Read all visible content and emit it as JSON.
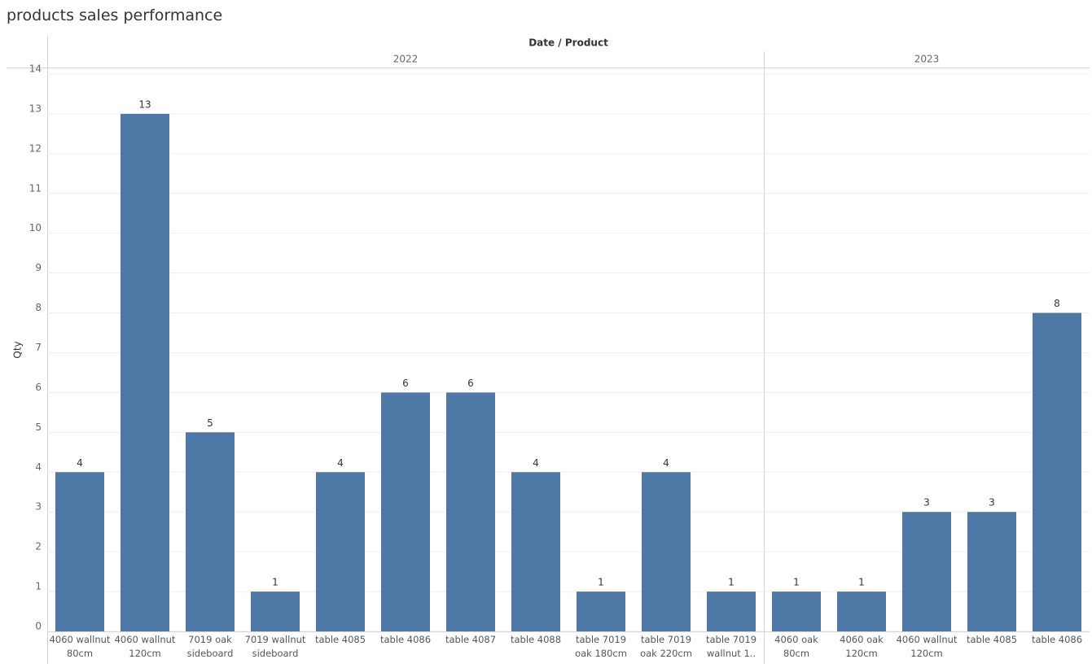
{
  "chart_data": {
    "type": "bar",
    "title": "products sales performance",
    "header": "Date / Product",
    "y_label": "Qty",
    "color": "#4e79a7",
    "grid": true,
    "ylim": [
      0,
      14
    ],
    "yticks": [
      0,
      1,
      2,
      3,
      4,
      5,
      6,
      7,
      8,
      9,
      10,
      11,
      12,
      13,
      14
    ],
    "panels": [
      {
        "year": "2022",
        "categories": [
          "4060 wallnut 80cm",
          "4060 wallnut 120cm",
          "7019 oak sideboard",
          "7019 wallnut sideboard",
          "table 4085",
          "table 4086",
          "table 4087",
          "table 4088",
          "table 7019 oak 180cm",
          "table 7019 oak 220cm",
          "table 7019 wallnut 1.."
        ],
        "values": [
          4,
          13,
          5,
          1,
          4,
          6,
          6,
          4,
          1,
          4,
          1
        ]
      },
      {
        "year": "2023",
        "categories": [
          "4060 oak 80cm",
          "4060 oak 120cm",
          "4060 wallnut 120cm",
          "table 4085",
          "table 4086"
        ],
        "values": [
          1,
          1,
          3,
          3,
          8
        ]
      }
    ]
  }
}
